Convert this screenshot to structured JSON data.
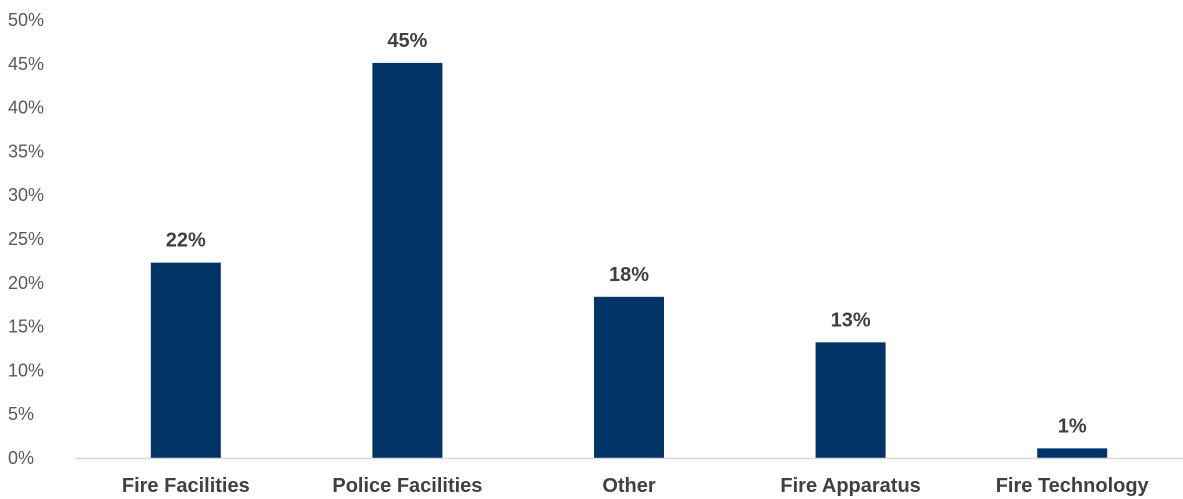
{
  "chart_data": {
    "type": "bar",
    "title": "",
    "xlabel": "",
    "ylabel": "",
    "categories": [
      "Fire Facilities",
      "Police Facilities",
      "Other",
      "Fire Apparatus",
      "Fire Technology"
    ],
    "values": [
      22.3,
      45.1,
      18.4,
      13.2,
      1.1
    ],
    "data_labels": [
      "22%",
      "45%",
      "18%",
      "13%",
      "1%"
    ],
    "ylim": [
      0,
      50
    ],
    "yticks": [
      0,
      5,
      10,
      15,
      20,
      25,
      30,
      35,
      40,
      45,
      50
    ],
    "ytick_labels": [
      "0%",
      "5%",
      "10%",
      "15%",
      "20%",
      "25%",
      "30%",
      "35%",
      "40%",
      "45%",
      "50%"
    ],
    "grid": false,
    "legend": "none",
    "bar_color": "#003366",
    "axis_color": "#d9d9d9"
  }
}
